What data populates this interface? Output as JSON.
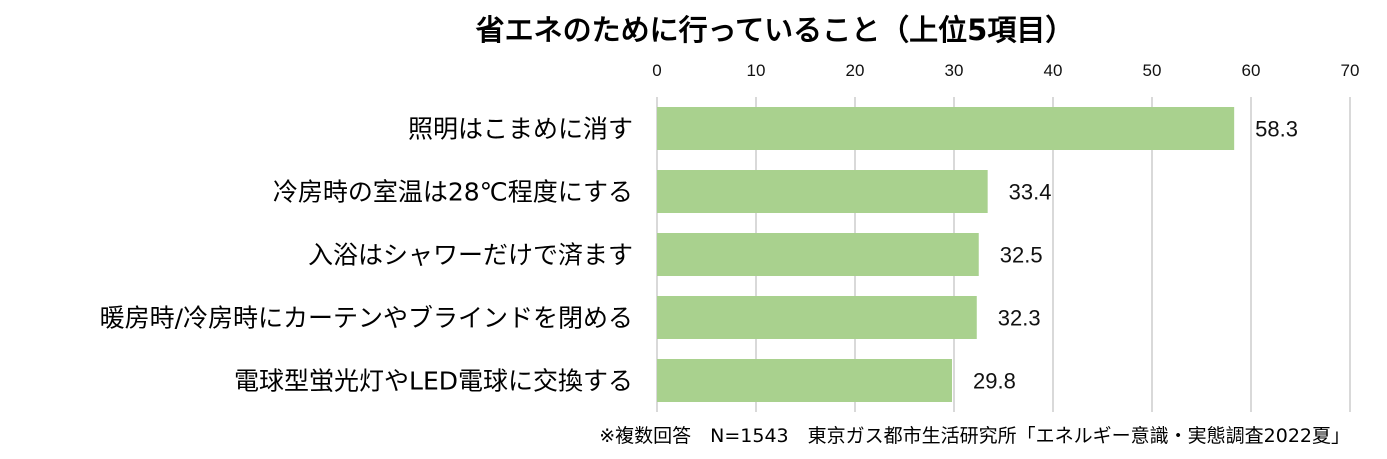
{
  "chart_data": {
    "type": "bar",
    "orientation": "horizontal",
    "title": "省エネのために行っていること（上位5項目）",
    "categories": [
      "照明はこまめに消す",
      "冷房時の室温は28℃程度にする",
      "入浴はシャワーだけで済ます",
      "暖房時/冷房時にカーテンやブラインドを閉める",
      "電球型蛍光灯やLED電球に交換する"
    ],
    "values": [
      58.3,
      33.4,
      32.5,
      32.3,
      29.8
    ],
    "data_labels": [
      "58.3",
      "33.4",
      "32.5",
      "32.3",
      "29.8"
    ],
    "xlim": [
      0,
      70
    ],
    "x_ticks": [
      "0",
      "10",
      "20",
      "30",
      "40",
      "50",
      "60",
      "70"
    ],
    "xaxis_position": "top",
    "grid": true,
    "bar_color": "#a9d18e",
    "note": "※複数回答　N=1543　東京ガス都市生活研究所「エネルギー意識・実態調査2022夏」"
  }
}
